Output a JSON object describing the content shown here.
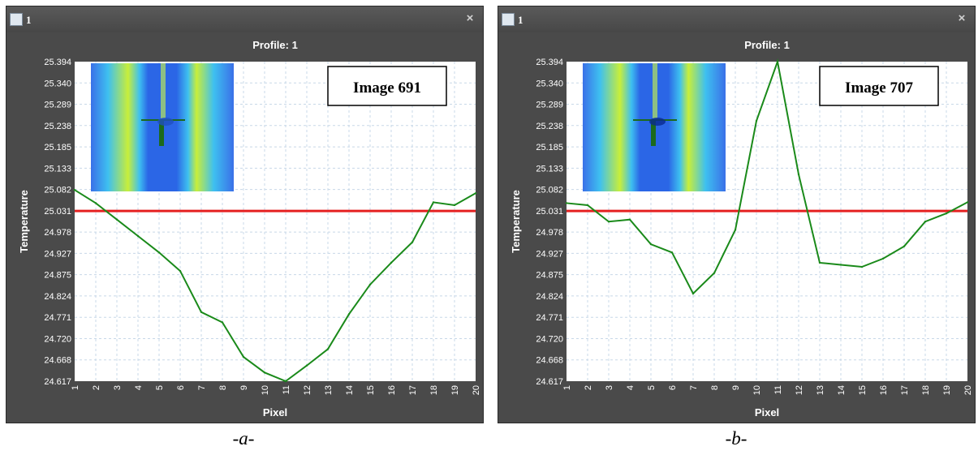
{
  "captions": [
    "-a-",
    "-b-"
  ],
  "windows": [
    {
      "title": "1",
      "close_label": "×"
    },
    {
      "title": "1",
      "close_label": "×"
    }
  ],
  "colors": {
    "frame": "#4a4a4a",
    "plot_bg": "#ffffff",
    "grid": "#c8d8e8",
    "series": "#1a8a1a",
    "threshold": "#e52020",
    "label_text": "#ffffff"
  },
  "icons": {
    "window_icon": "chart-window-icon",
    "close": "close-icon"
  },
  "chart_data": [
    {
      "type": "line",
      "title": "Profile: 1",
      "xlabel": "Pixel",
      "ylabel": "Temperature",
      "annotation": "Image 691",
      "inset": "thermal-image-inset",
      "grid": true,
      "xlim": [
        1,
        20
      ],
      "ylim": [
        24.617,
        25.394
      ],
      "x_ticks": [
        "1",
        "2",
        "3",
        "4",
        "5",
        "6",
        "7",
        "8",
        "9",
        "10",
        "11",
        "12",
        "13",
        "14",
        "15",
        "16",
        "17",
        "18",
        "19",
        "20"
      ],
      "y_ticks": [
        "25.394",
        "25.340",
        "25.289",
        "25.238",
        "25.185",
        "25.133",
        "25.082",
        "25.031",
        "24.978",
        "24.927",
        "24.875",
        "24.824",
        "24.771",
        "24.720",
        "24.668",
        "24.617"
      ],
      "x": [
        1,
        2,
        3,
        4,
        5,
        6,
        7,
        8,
        9,
        10,
        11,
        12,
        13,
        14,
        15,
        16,
        17,
        18,
        19,
        20
      ],
      "series": [
        {
          "values": [
            25.082,
            25.05,
            25.01,
            24.97,
            24.93,
            24.885,
            24.785,
            24.76,
            24.676,
            24.638,
            24.617,
            24.655,
            24.695,
            24.78,
            24.852,
            24.905,
            24.955,
            25.052,
            25.045,
            25.074
          ]
        }
      ],
      "threshold": 25.031
    },
    {
      "type": "line",
      "title": "Profile: 1",
      "xlabel": "Pixel",
      "ylabel": "Temperature",
      "annotation": "Image 707",
      "inset": "thermal-image-inset",
      "grid": true,
      "xlim": [
        1,
        20
      ],
      "ylim": [
        24.617,
        25.394
      ],
      "x_ticks": [
        "1",
        "2",
        "3",
        "4",
        "5",
        "6",
        "7",
        "8",
        "9",
        "10",
        "11",
        "12",
        "13",
        "14",
        "15",
        "16",
        "17",
        "18",
        "19",
        "20"
      ],
      "y_ticks": [
        "25.394",
        "25.340",
        "25.289",
        "25.238",
        "25.185",
        "25.133",
        "25.082",
        "25.031",
        "24.978",
        "24.927",
        "24.875",
        "24.824",
        "24.771",
        "24.720",
        "24.668",
        "24.617"
      ],
      "x": [
        1,
        2,
        3,
        4,
        5,
        6,
        7,
        8,
        9,
        10,
        11,
        12,
        13,
        14,
        15,
        16,
        17,
        18,
        19,
        20
      ],
      "series": [
        {
          "values": [
            25.05,
            25.045,
            25.005,
            25.01,
            24.95,
            24.93,
            24.83,
            24.88,
            24.985,
            25.25,
            25.394,
            25.12,
            24.905,
            24.9,
            24.895,
            24.915,
            24.945,
            25.005,
            25.025,
            25.052
          ]
        }
      ],
      "threshold": 25.031
    }
  ]
}
